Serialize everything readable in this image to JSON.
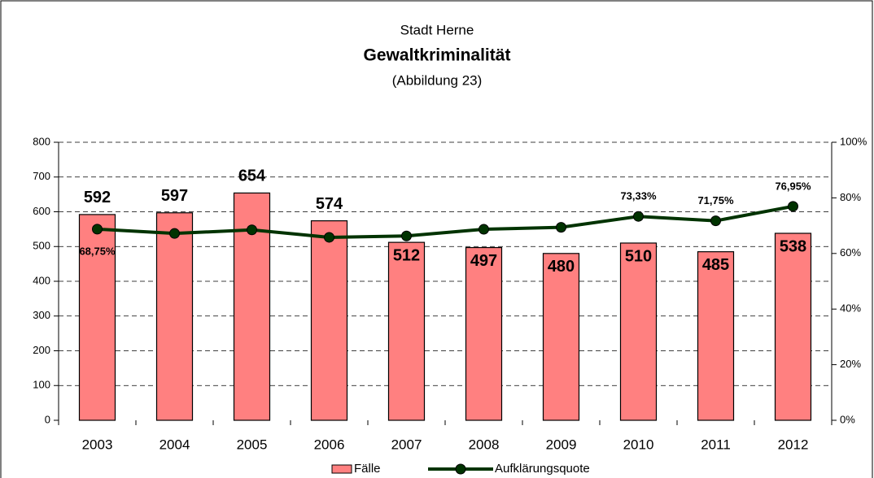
{
  "chart_data": {
    "type": "combo",
    "title": "Gewaltkriminalität",
    "pretitle": "Stadt Herne",
    "subtitle": "(Abbildung 23)",
    "categories": [
      "2003",
      "2004",
      "2005",
      "2006",
      "2007",
      "2008",
      "2009",
      "2010",
      "2011",
      "2012"
    ],
    "series": [
      {
        "name": "Fälle",
        "type": "bar",
        "color": "#ff8080",
        "values": [
          592,
          597,
          654,
          574,
          512,
          497,
          480,
          510,
          485,
          538
        ]
      },
      {
        "name": "Aufklärungsquote",
        "type": "line",
        "axis": "y2",
        "color": "#003300",
        "values": [
          68.75,
          67.2,
          68.5,
          65.8,
          66.3,
          68.7,
          69.4,
          73.33,
          71.75,
          76.95
        ],
        "value_labels": [
          "68,75%",
          null,
          null,
          null,
          null,
          null,
          null,
          "73,33%",
          "71,75%",
          "76,95%"
        ]
      }
    ],
    "ylim": [
      0,
      800
    ],
    "yticks": [
      0,
      100,
      200,
      300,
      400,
      500,
      600,
      700,
      800
    ],
    "y2lim": [
      0,
      100
    ],
    "y2ticks": [
      {
        "value": 0,
        "label": "0%"
      },
      {
        "value": 20,
        "label": "20%"
      },
      {
        "value": 40,
        "label": "40%"
      },
      {
        "value": 60,
        "label": "60%"
      },
      {
        "value": 80,
        "label": "80%"
      },
      {
        "value": 100,
        "label": "100%"
      }
    ],
    "grid": true,
    "legend": "bottom"
  }
}
